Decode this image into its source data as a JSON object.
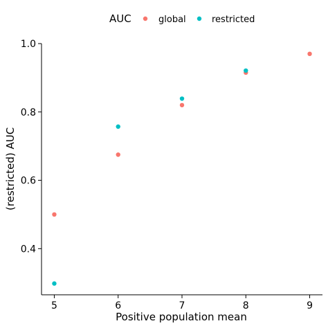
{
  "chart_data": {
    "type": "scatter",
    "xlabel": "Positive population mean",
    "ylabel": "(restricted) AUC",
    "xlim": [
      4.8,
      9.2
    ],
    "ylim": [
      0.265,
      1.0
    ],
    "x_ticks": [
      5,
      6,
      7,
      8,
      9
    ],
    "y_ticks": [
      0.4,
      0.6,
      0.8,
      1.0
    ],
    "x_tick_labels": [
      "5",
      "6",
      "7",
      "8",
      "9"
    ],
    "y_tick_labels": [
      "0.4",
      "0.6",
      "0.8",
      "1.0"
    ],
    "grid": false,
    "legend": {
      "title": "AUC",
      "position": "top"
    },
    "series": [
      {
        "name": "global",
        "color": "#F8766D",
        "points": [
          {
            "x": 5,
            "y": 0.5
          },
          {
            "x": 6,
            "y": 0.675
          },
          {
            "x": 7,
            "y": 0.82
          },
          {
            "x": 8,
            "y": 0.915
          },
          {
            "x": 9,
            "y": 0.97
          }
        ]
      },
      {
        "name": "restricted",
        "color": "#00BFC4",
        "points": [
          {
            "x": 5,
            "y": 0.298
          },
          {
            "x": 6,
            "y": 0.757
          },
          {
            "x": 7,
            "y": 0.839
          },
          {
            "x": 8,
            "y": 0.921
          }
        ]
      }
    ]
  }
}
